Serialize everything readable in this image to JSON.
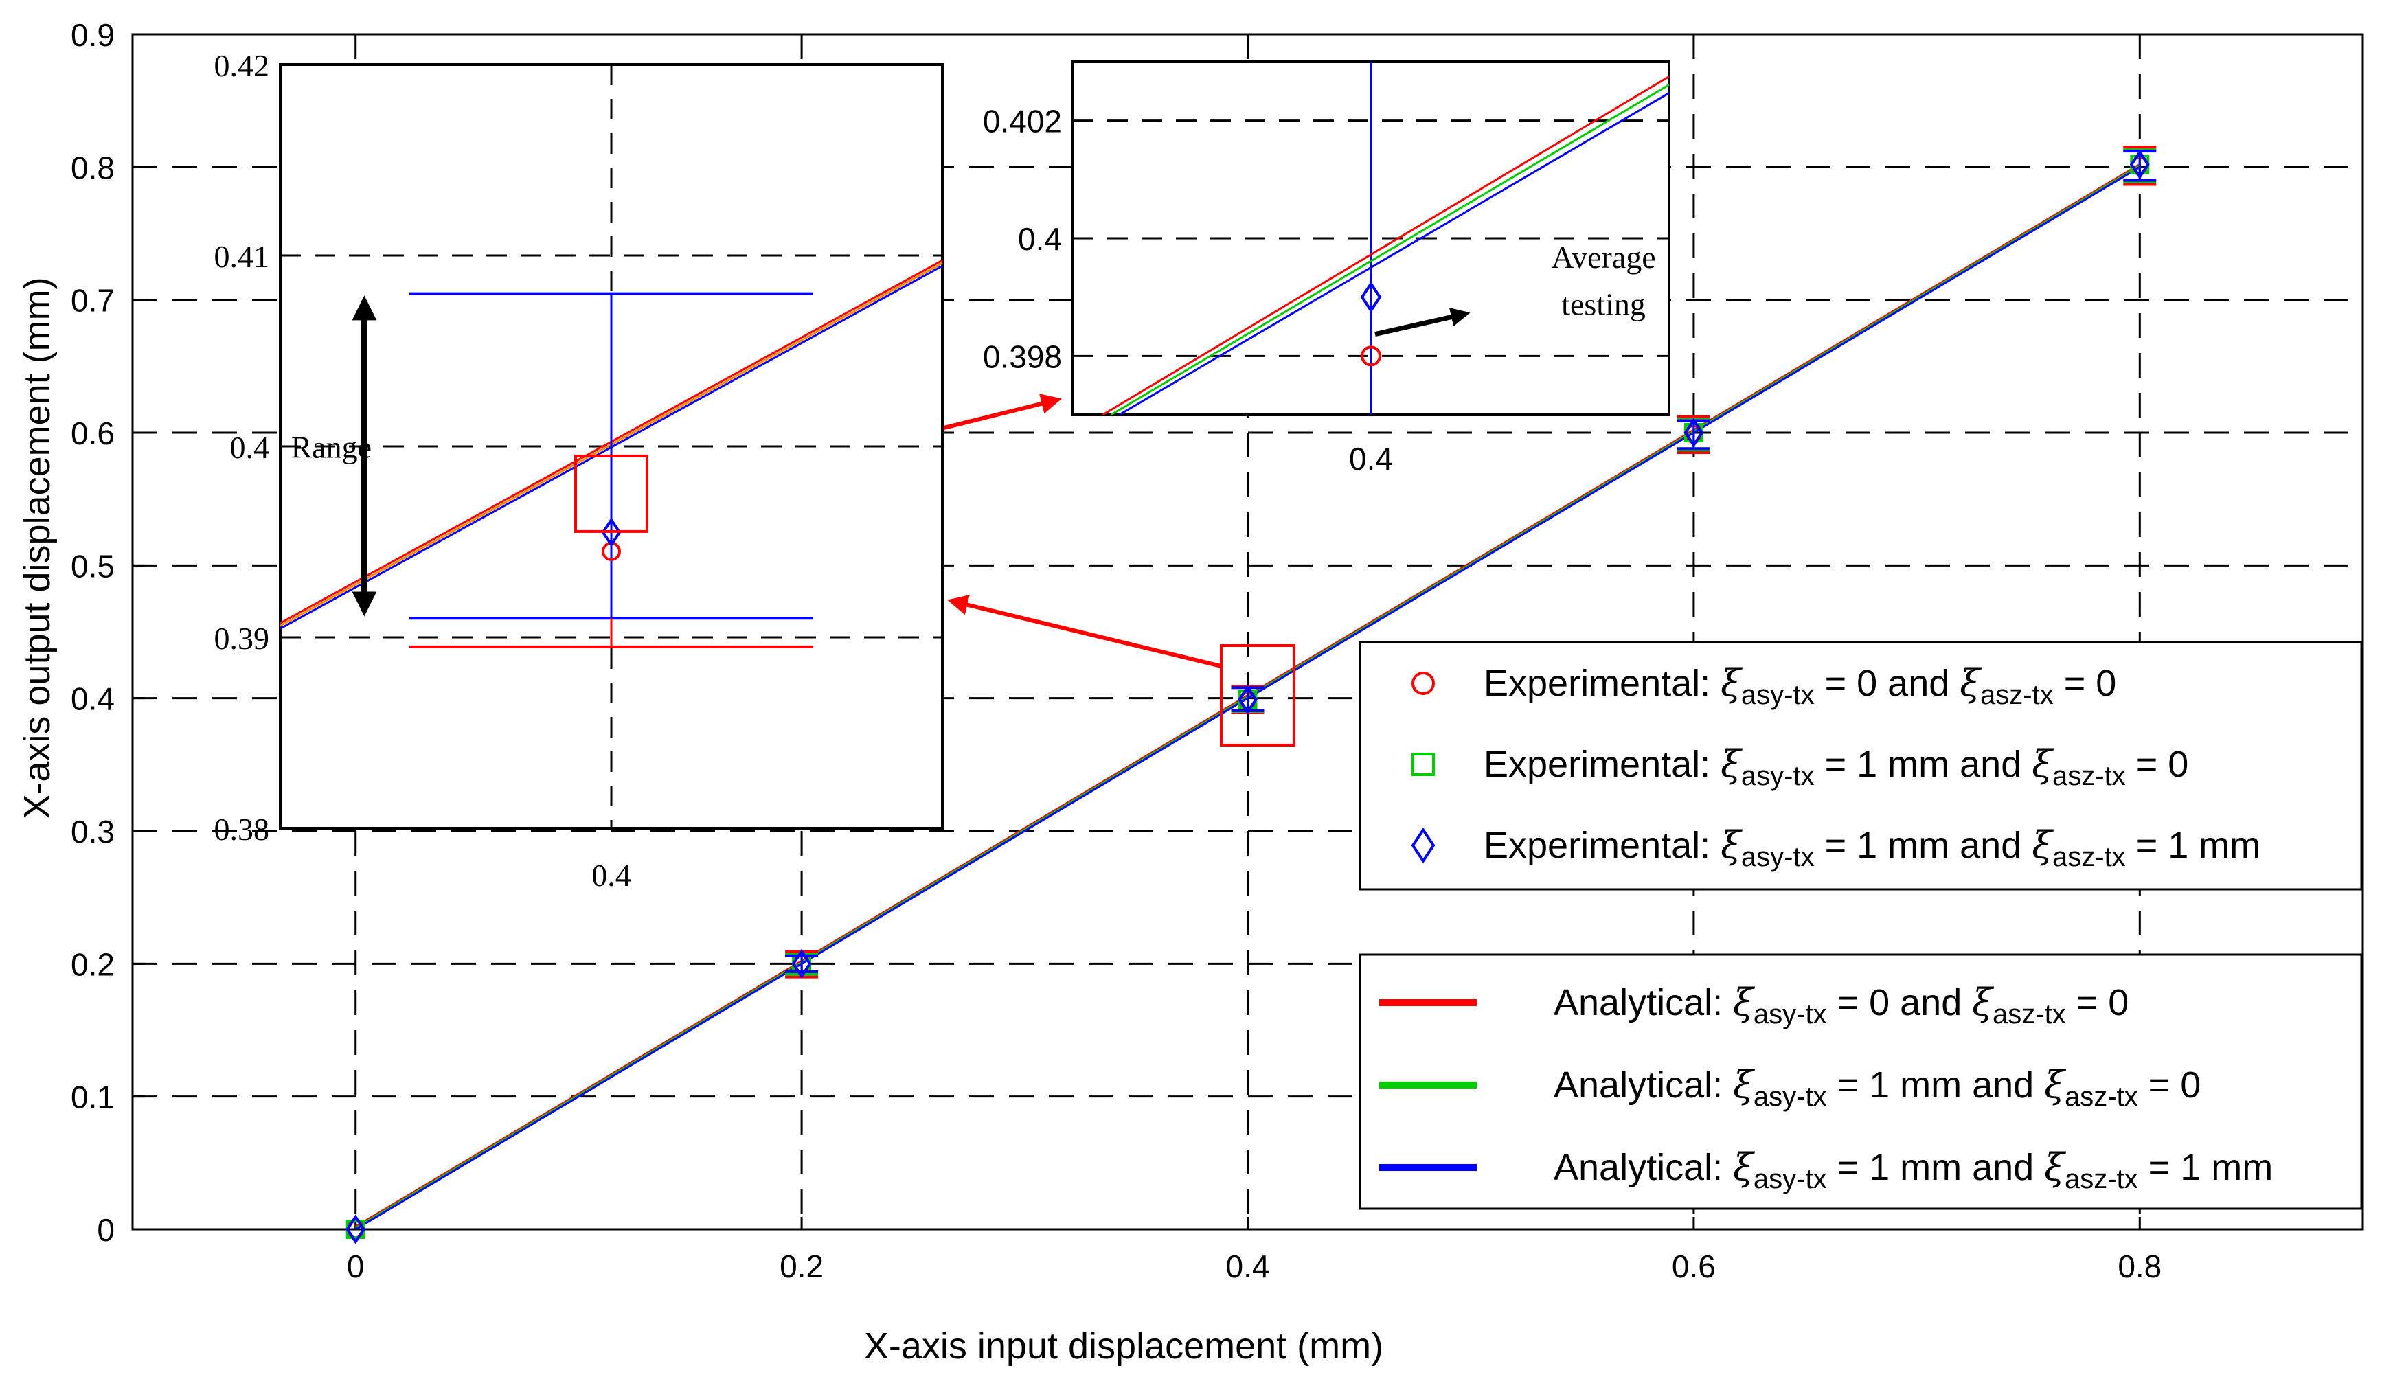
{
  "chart_data": {
    "type": "line",
    "xlabel": "X-axis input displacement (mm)",
    "ylabel": "X-axis output displacement (mm)",
    "xlim": [
      -0.1,
      0.9
    ],
    "ylim": [
      0,
      0.9
    ],
    "xticks": [
      "0",
      "0.2",
      "0.4",
      "0.6",
      "0.8"
    ],
    "yticks": [
      "0",
      "0.1",
      "0.2",
      "0.3",
      "0.4",
      "0.5",
      "0.6",
      "0.7",
      "0.8",
      "0.9"
    ],
    "grid": true,
    "x": [
      0,
      0.2,
      0.4,
      0.6,
      0.8
    ],
    "analytical_series": [
      {
        "name": "Analytical: ξasy-tx = 0 and ξasz-tx = 0",
        "color": "#ff0000",
        "x": [
          0,
          0.8
        ],
        "y": [
          0,
          0.8
        ]
      },
      {
        "name": "Analytical: ξasy-tx = 1 mm and ξasz-tx = 0",
        "color": "#00cc00",
        "x": [
          0,
          0.8
        ],
        "y": [
          0,
          0.8
        ]
      },
      {
        "name": "Analytical: ξasy-tx = 1 mm and ξasz-tx = 1 mm",
        "color": "#0000ff",
        "x": [
          0,
          0.8
        ],
        "y": [
          0,
          0.8
        ]
      }
    ],
    "experimental_series": [
      {
        "name": "Experimental: ξasy-tx = 0 and ξasz-tx = 0",
        "marker": "circle",
        "color": "#ff0000",
        "y": [
          0,
          0.2,
          0.398,
          0.599,
          0.801
        ],
        "err_low": [
          0,
          0.19,
          0.389,
          0.585,
          0.787
        ],
        "err_high": [
          0,
          0.209,
          0.409,
          0.612,
          0.815
        ]
      },
      {
        "name": "Experimental: ξasy-tx = 1 mm and ξasz-tx = 0",
        "marker": "square",
        "color": "#00cc00",
        "y": [
          0,
          0.2,
          0.399,
          0.6,
          0.802
        ],
        "err_low": [
          0,
          0.192,
          0.39,
          0.587,
          0.789
        ],
        "err_high": [
          0,
          0.207,
          0.408,
          0.61,
          0.813
        ]
      },
      {
        "name": "Experimental: ξasy-tx = 1 mm and ξasz-tx = 1 mm",
        "marker": "diamond",
        "color": "#0000ff",
        "y": [
          0,
          0.2,
          0.399,
          0.6,
          0.802
        ],
        "err_low": [
          0,
          0.194,
          0.3905,
          0.588,
          0.79
        ],
        "err_high": [
          0,
          0.206,
          0.408,
          0.609,
          0.812
        ]
      }
    ],
    "legend": {
      "placement": "bottom-right",
      "experimental": [
        {
          "marker": "circle",
          "color": "#ff0000",
          "prefix": "Experimental: ",
          "sub1": "asy-tx",
          "val1": " = 0",
          "sub2": "asz-tx",
          "val2": " = 0"
        },
        {
          "marker": "square",
          "color": "#00cc00",
          "prefix": "Experimental: ",
          "sub1": "asy-tx",
          "val1": " = 1 mm",
          "sub2": "asz-tx",
          "val2": " = 0"
        },
        {
          "marker": "diamond",
          "color": "#0000ff",
          "prefix": "Experimental: ",
          "sub1": "asy-tx",
          "val1": " = 1 mm",
          "sub2": "asz-tx",
          "val2": " = 1 mm"
        }
      ],
      "analytical": [
        {
          "color": "#ff0000",
          "prefix": "Analytical: ",
          "sub1": "asy-tx",
          "val1": " = 0",
          "sub2": "asz-tx",
          "val2": " = 0"
        },
        {
          "color": "#00cc00",
          "prefix": "Analytical: ",
          "sub1": "asy-tx",
          "val1": " = 1 mm",
          "sub2": "asz-tx",
          "val2": " = 0"
        },
        {
          "color": "#0000ff",
          "prefix": "Analytical: ",
          "sub1": "asy-tx",
          "val1": " = 1 mm",
          "sub2": "asz-tx",
          "val2": " = 1 mm"
        }
      ],
      "symbol": "ξ",
      "and": "and"
    },
    "inset_left": {
      "xlim": [
        0.35,
        0.45
      ],
      "ylim": [
        0.38,
        0.42
      ],
      "xticks": [
        "0.4"
      ],
      "yticks": [
        "0.38",
        "0.39",
        "0.4",
        "0.41",
        "0.42"
      ],
      "range_label": "Range",
      "range_top": 0.408,
      "range_bottom": 0.391,
      "red_low": 0.3895,
      "points": [
        {
          "y": 0.3945,
          "marker": "circle",
          "color": "#ff0000"
        },
        {
          "y": 0.3955,
          "marker": "diamond",
          "color": "#0000ff"
        }
      ]
    },
    "inset_right": {
      "xlim": [
        0.399,
        0.401
      ],
      "ylim": [
        0.397,
        0.403
      ],
      "xticks": [
        "0.4"
      ],
      "yticks": [
        "0.398",
        "0.4",
        "0.402"
      ],
      "annotation": [
        "Average",
        "testing"
      ],
      "points": [
        {
          "y": 0.398,
          "marker": "circle",
          "color": "#ff0000"
        },
        {
          "y": 0.399,
          "marker": "diamond",
          "color": "#0000ff"
        }
      ]
    }
  }
}
